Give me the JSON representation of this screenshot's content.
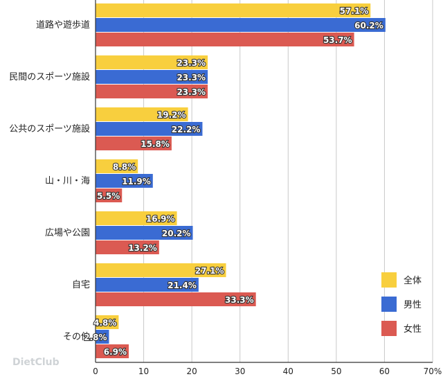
{
  "chart_data": {
    "type": "bar",
    "orientation": "horizontal",
    "categories": [
      "道路や遊歩道",
      "民間のスポーツ施設",
      "公共のスポーツ施設",
      "山・川・海",
      "広場や公園",
      "自宅",
      "その他"
    ],
    "series": [
      {
        "name": "全体",
        "color": "#F8CF3E",
        "values": [
          57.1,
          23.3,
          19.2,
          8.8,
          16.9,
          27.1,
          4.8
        ],
        "labels": [
          "57.1%",
          "23.3%",
          "19.2%",
          "8.8%",
          "16.9%",
          "27.1%",
          "4.8%"
        ]
      },
      {
        "name": "男性",
        "color": "#3A6BD3",
        "values": [
          60.2,
          23.3,
          22.2,
          11.9,
          20.2,
          21.4,
          2.8
        ],
        "labels": [
          "60.2%",
          "23.3%",
          "22.2%",
          "11.9%",
          "20.2%",
          "21.4%",
          "2.8%"
        ]
      },
      {
        "name": "女性",
        "color": "#DB5A52",
        "values": [
          53.7,
          23.3,
          15.8,
          5.5,
          13.2,
          33.3,
          6.9
        ],
        "labels": [
          "53.7%",
          "23.3%",
          "15.8%",
          "5.5%",
          "13.2%",
          "33.3%",
          "6.9%"
        ]
      }
    ],
    "xlim": [
      0,
      70
    ],
    "xticks": [
      "0",
      "10",
      "20",
      "30",
      "40",
      "50",
      "60",
      "70%"
    ],
    "grid": true,
    "legend": "bottom-right"
  },
  "watermark": "DietClub"
}
